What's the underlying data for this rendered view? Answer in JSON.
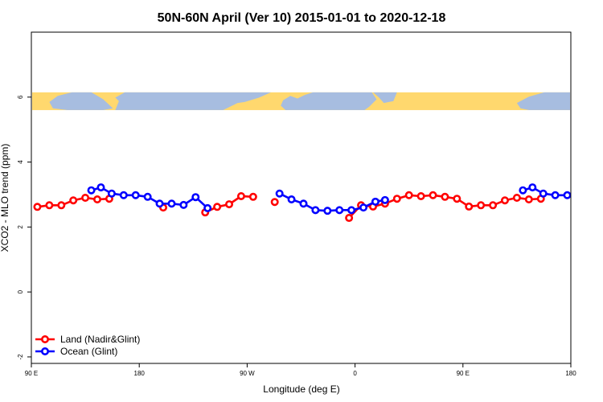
{
  "chart_data": {
    "type": "line",
    "title": "50N-60N April (Ver 10)   2015-01-01 to 2020-12-18",
    "xlabel": "Longitude (deg E)",
    "ylabel": "XCO2 - MLO trend (ppm)",
    "xlim": [
      90,
      540
    ],
    "ylim": [
      -2.2,
      8
    ],
    "x_ticks": [
      {
        "value": 90,
        "label": "90 E"
      },
      {
        "value": 180,
        "label": "180"
      },
      {
        "value": 270,
        "label": "90 W"
      },
      {
        "value": 360,
        "label": "0"
      },
      {
        "value": 450,
        "label": "90 E"
      },
      {
        "value": 540,
        "label": "180"
      }
    ],
    "y_ticks": [
      {
        "value": -2,
        "label": "-2"
      },
      {
        "value": 0,
        "label": "0"
      },
      {
        "value": 2,
        "label": "2"
      },
      {
        "value": 4,
        "label": "4"
      },
      {
        "value": 6,
        "label": "6"
      }
    ],
    "map_strip": {
      "y_min": 5.6,
      "y_max": 6.15,
      "land_color": "#ffd86e",
      "ocean_color": "#a7bde0"
    },
    "legend_position": "bottom-left",
    "series": [
      {
        "name": "Land (Nadir&Glint)",
        "color": "#ff0000",
        "segments": [
          [
            [
              95,
              2.62
            ],
            [
              105,
              2.67
            ],
            [
              115,
              2.67
            ],
            [
              125,
              2.82
            ],
            [
              135,
              2.9
            ],
            [
              145,
              2.85
            ],
            [
              155,
              2.87
            ]
          ],
          [
            [
              200,
              2.6
            ]
          ],
          [
            [
              235,
              2.45
            ],
            [
              245,
              2.62
            ],
            [
              255,
              2.7
            ],
            [
              265,
              2.95
            ],
            [
              275,
              2.93
            ]
          ],
          [
            [
              293,
              2.77
            ]
          ],
          [
            [
              355,
              2.28
            ],
            [
              365,
              2.67
            ],
            [
              375,
              2.63
            ],
            [
              385,
              2.72
            ],
            [
              395,
              2.87
            ],
            [
              405,
              2.98
            ],
            [
              415,
              2.95
            ],
            [
              425,
              2.98
            ],
            [
              435,
              2.93
            ],
            [
              445,
              2.87
            ],
            [
              455,
              2.63
            ],
            [
              465,
              2.67
            ],
            [
              475,
              2.67
            ],
            [
              485,
              2.82
            ],
            [
              495,
              2.9
            ],
            [
              505,
              2.85
            ],
            [
              515,
              2.87
            ]
          ]
        ]
      },
      {
        "name": "Ocean (Glint)",
        "color": "#0000ff",
        "segments": [
          [
            [
              140,
              3.13
            ],
            [
              148,
              3.22
            ],
            [
              157,
              3.03
            ],
            [
              167,
              2.98
            ],
            [
              177,
              2.98
            ],
            [
              187,
              2.93
            ],
            [
              197,
              2.72
            ],
            [
              207,
              2.72
            ],
            [
              217,
              2.68
            ],
            [
              227,
              2.92
            ],
            [
              237,
              2.58
            ]
          ],
          [
            [
              297,
              3.03
            ],
            [
              307,
              2.85
            ],
            [
              317,
              2.72
            ],
            [
              327,
              2.52
            ],
            [
              337,
              2.5
            ],
            [
              347,
              2.52
            ],
            [
              357,
              2.52
            ],
            [
              367,
              2.6
            ],
            [
              377,
              2.78
            ],
            [
              385,
              2.83
            ]
          ],
          [
            [
              500,
              3.13
            ],
            [
              508,
              3.22
            ],
            [
              517,
              3.03
            ],
            [
              527,
              2.98
            ],
            [
              537,
              2.98
            ]
          ]
        ]
      }
    ]
  }
}
